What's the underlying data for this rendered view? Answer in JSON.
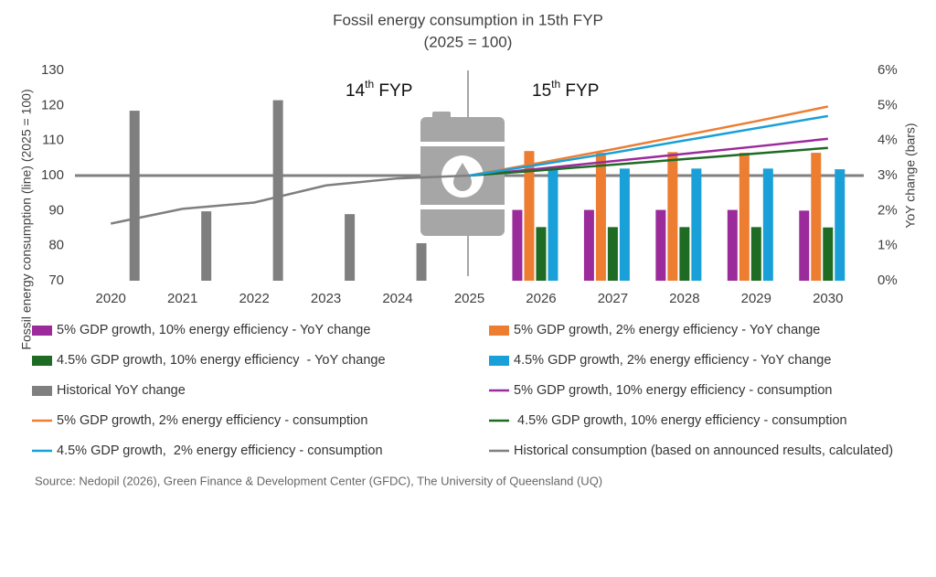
{
  "chart_data": {
    "type": "bar_line_combo",
    "title": "Fossil energy consumption in 15th FYP",
    "subtitle": "(2025 = 100)",
    "y_label": "Fossil energy consumption (line) (2025 = 100)",
    "y2_label": "YoY change (bars)",
    "categories": [
      "2020",
      "2021",
      "2022",
      "2023",
      "2024",
      "2025",
      "2026",
      "2027",
      "2028",
      "2029",
      "2030"
    ],
    "ylim": [
      70,
      130
    ],
    "yticks": [
      70,
      80,
      90,
      100,
      110,
      120,
      130
    ],
    "y2lim": [
      0,
      6
    ],
    "y2ticks": [
      {
        "value": 0,
        "label": "0%"
      },
      {
        "value": 1,
        "label": "1%"
      },
      {
        "value": 2,
        "label": "2%"
      },
      {
        "value": 3,
        "label": "3%"
      },
      {
        "value": 4,
        "label": "4%"
      },
      {
        "value": 5,
        "label": "5%"
      },
      {
        "value": 6,
        "label": "6%"
      }
    ],
    "reference_line": 100,
    "annotations": [
      {
        "number": "14",
        "sup": "th",
        "text": " FYP"
      },
      {
        "number": "15",
        "sup": "th",
        "text": " FYP"
      }
    ],
    "series": [
      {
        "name": "5% GDP growth, 10% energy efficiency - YoY change",
        "kind": "bar",
        "axis": "y2",
        "color": "#9b2a9b",
        "values": [
          null,
          null,
          null,
          null,
          null,
          null,
          2.02,
          2.02,
          2.02,
          2.02,
          2.0
        ]
      },
      {
        "name": "5% GDP growth, 2% energy efficiency - YoY change",
        "kind": "bar",
        "axis": "y2",
        "color": "#ed7d31",
        "values": [
          null,
          null,
          null,
          null,
          null,
          null,
          3.7,
          3.65,
          3.67,
          3.65,
          3.65
        ]
      },
      {
        "name": "4.5% GDP growth, 10% energy efficiency  - YoY change",
        "kind": "bar",
        "axis": "y2",
        "color": "#1e6b24",
        "values": [
          null,
          null,
          null,
          null,
          null,
          null,
          1.53,
          1.53,
          1.53,
          1.53,
          1.52
        ]
      },
      {
        "name": "4.5% GDP growth, 2% energy efficiency - YoY change",
        "kind": "bar",
        "axis": "y2",
        "color": "#1aa0d8",
        "values": [
          null,
          null,
          null,
          null,
          null,
          null,
          3.2,
          3.2,
          3.2,
          3.2,
          3.18
        ]
      },
      {
        "name": "Historical YoY change",
        "kind": "bar",
        "axis": "y2",
        "color": "#7f7f7f",
        "values": [
          4.85,
          1.98,
          5.15,
          1.9,
          1.07,
          null,
          null,
          null,
          null,
          null,
          null
        ]
      },
      {
        "name": "5% GDP growth, 10% energy efficiency - consumption",
        "kind": "line",
        "color": "#9b2a9b",
        "values": [
          null,
          null,
          null,
          null,
          null,
          100,
          102,
          104.1,
          106.2,
          108.3,
          110.5
        ]
      },
      {
        "name": "5% GDP growth, 2% energy efficiency - consumption",
        "kind": "line",
        "color": "#ed7d31",
        "values": [
          null,
          null,
          null,
          null,
          null,
          100,
          103.7,
          107.5,
          111.5,
          115.5,
          119.7
        ]
      },
      {
        "name": " 4.5% GDP growth, 10% energy efficiency - consumption",
        "kind": "line",
        "color": "#1e6b24",
        "values": [
          null,
          null,
          null,
          null,
          null,
          100,
          101.5,
          103.1,
          104.7,
          106.3,
          107.9
        ]
      },
      {
        "name": "4.5% GDP growth,  2% energy efficiency - consumption",
        "kind": "line",
        "color": "#1aa0d8",
        "values": [
          null,
          null,
          null,
          null,
          null,
          100,
          103.2,
          106.5,
          110,
          113.5,
          117
        ]
      },
      {
        "name": "Historical consumption (based on announced results, calculated)",
        "kind": "line",
        "color": "#7f7f7f",
        "values": [
          86.3,
          90.5,
          92.3,
          97.2,
          99.2,
          100,
          null,
          null,
          null,
          null,
          null
        ]
      }
    ],
    "source": "Source: Nedopil (2026), Green Finance & Development Center (GFDC), The University of Queensland (UQ)"
  }
}
